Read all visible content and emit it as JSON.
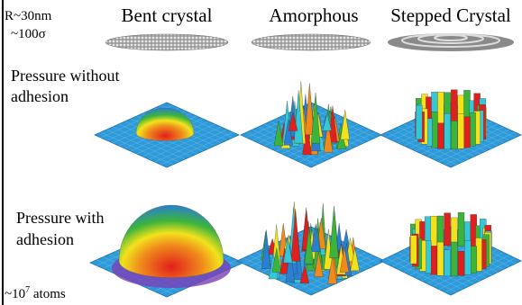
{
  "header": {
    "radius": "R~30nm",
    "sigma": "~100σ",
    "columns": [
      "Bent crystal",
      "Amorphous",
      "Stepped Crystal"
    ]
  },
  "rows": [
    {
      "label_lines": [
        "Pressure without",
        "adhesion"
      ]
    },
    {
      "label_lines": [
        "Pressure with",
        "adhesion"
      ]
    }
  ],
  "footnote": {
    "base": "~10",
    "exponent": "7",
    "suffix": " atoms"
  }
}
